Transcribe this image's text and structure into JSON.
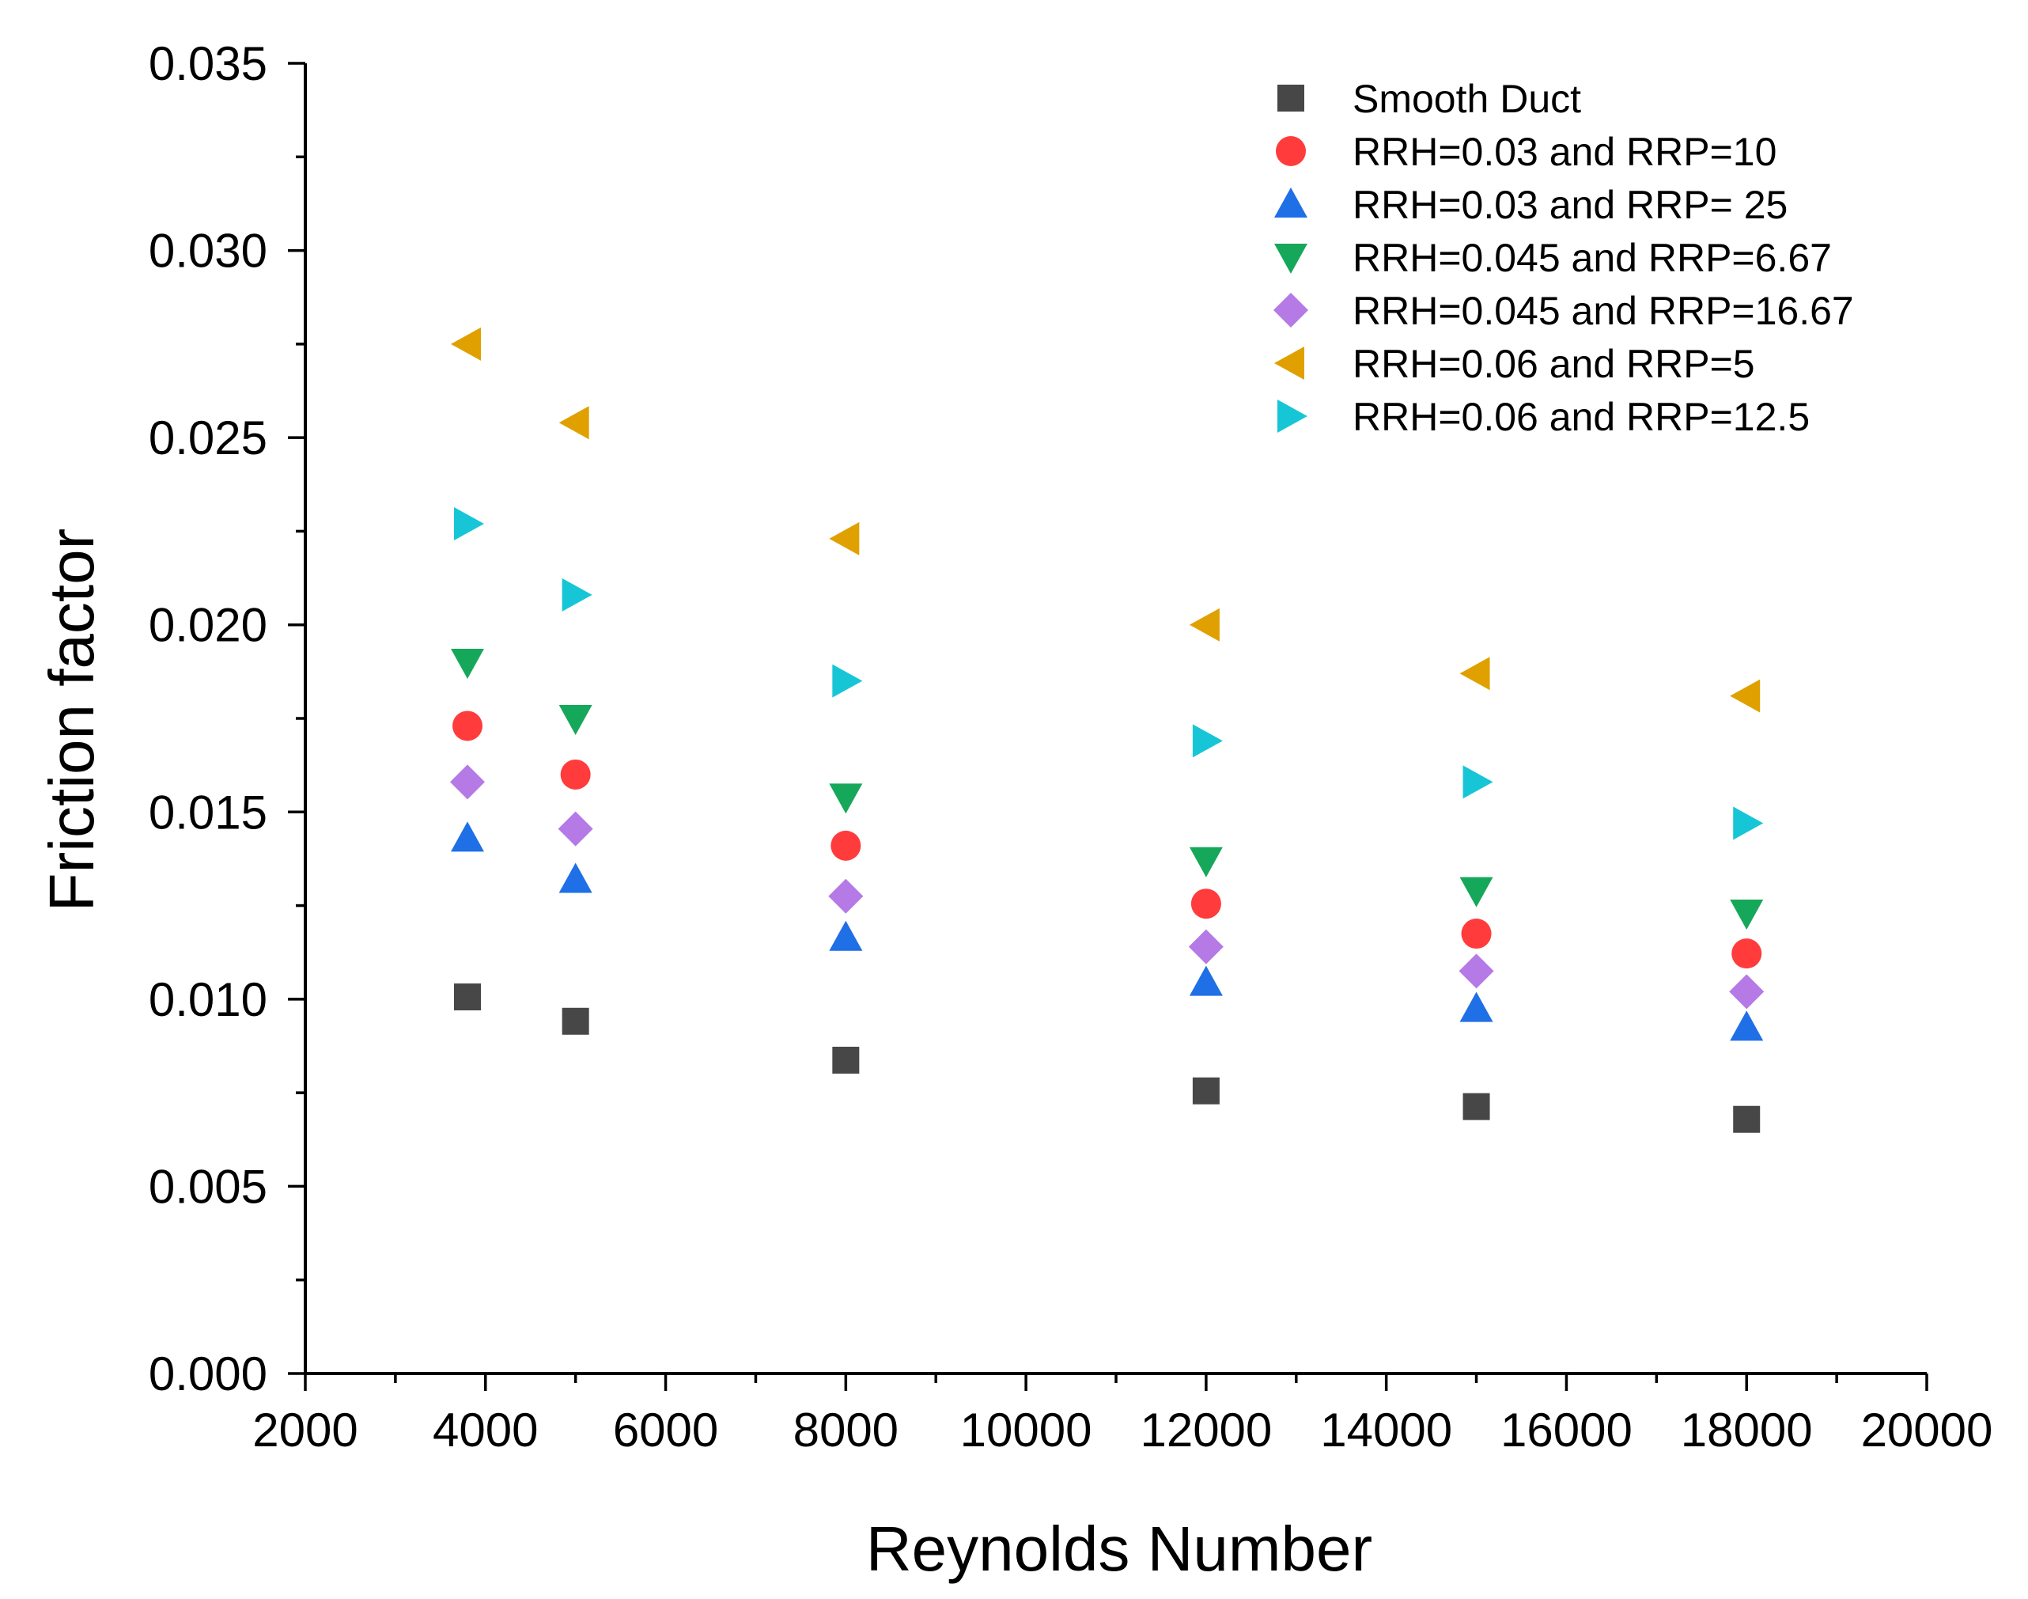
{
  "chart_data": {
    "type": "scatter",
    "title": "",
    "xlabel": "Reynolds Number",
    "ylabel": "Friction factor",
    "xlim": [
      2000,
      20000
    ],
    "ylim": [
      0.0,
      0.035
    ],
    "xticks": [
      "2000",
      "4000",
      "6000",
      "8000",
      "10000",
      "12000",
      "14000",
      "16000",
      "18000",
      "20000"
    ],
    "yticks": [
      "0.000",
      "0.005",
      "0.010",
      "0.015",
      "0.020",
      "0.025",
      "0.030",
      "0.035"
    ],
    "grid": false,
    "legend_position": "top-right",
    "series": [
      {
        "name": "Smooth Duct",
        "marker": "square",
        "color": "#474747",
        "x": [
          3800,
          5000,
          8000,
          12000,
          15000,
          18000
        ],
        "y": [
          0.01006,
          0.00941,
          0.00837,
          0.00755,
          0.00713,
          0.00679
        ]
      },
      {
        "name": "RRH=0.03 and RRP=10",
        "marker": "circle",
        "color": "#ff3b3b",
        "x": [
          3800,
          5000,
          8000,
          12000,
          15000,
          18000
        ],
        "y": [
          0.0173,
          0.016,
          0.0141,
          0.01255,
          0.01175,
          0.01122
        ]
      },
      {
        "name": "RRH=0.03 and RRP= 25",
        "marker": "triangle-up",
        "color": "#1f6fe6",
        "x": [
          3800,
          5000,
          8000,
          12000,
          15000,
          18000
        ],
        "y": [
          0.0143,
          0.0132,
          0.01165,
          0.01045,
          0.00975,
          0.00925
        ]
      },
      {
        "name": "RRH=0.045 and RRP=6.67",
        "marker": "triangle-down",
        "color": "#16a85a",
        "x": [
          3800,
          5000,
          8000,
          12000,
          15000,
          18000
        ],
        "y": [
          0.019,
          0.0175,
          0.0154,
          0.0137,
          0.0129,
          0.0123
        ]
      },
      {
        "name": "RRH=0.045 and RRP=16.67",
        "marker": "diamond",
        "color": "#b57ae6",
        "x": [
          3800,
          5000,
          8000,
          12000,
          15000,
          18000
        ],
        "y": [
          0.0158,
          0.01455,
          0.01275,
          0.0114,
          0.01075,
          0.0102
        ]
      },
      {
        "name": "RRH=0.06 and RRP=5",
        "marker": "triangle-left",
        "color": "#e0a000",
        "x": [
          3800,
          5000,
          8000,
          12000,
          15000,
          18000
        ],
        "y": [
          0.0275,
          0.0254,
          0.0223,
          0.02,
          0.0187,
          0.0181
        ]
      },
      {
        "name": "RRH=0.06 and RRP=12.5",
        "marker": "triangle-right",
        "color": "#17c6d6",
        "x": [
          3800,
          5000,
          8000,
          12000,
          15000,
          18000
        ],
        "y": [
          0.0227,
          0.0208,
          0.0185,
          0.0169,
          0.0158,
          0.0147
        ]
      }
    ]
  }
}
